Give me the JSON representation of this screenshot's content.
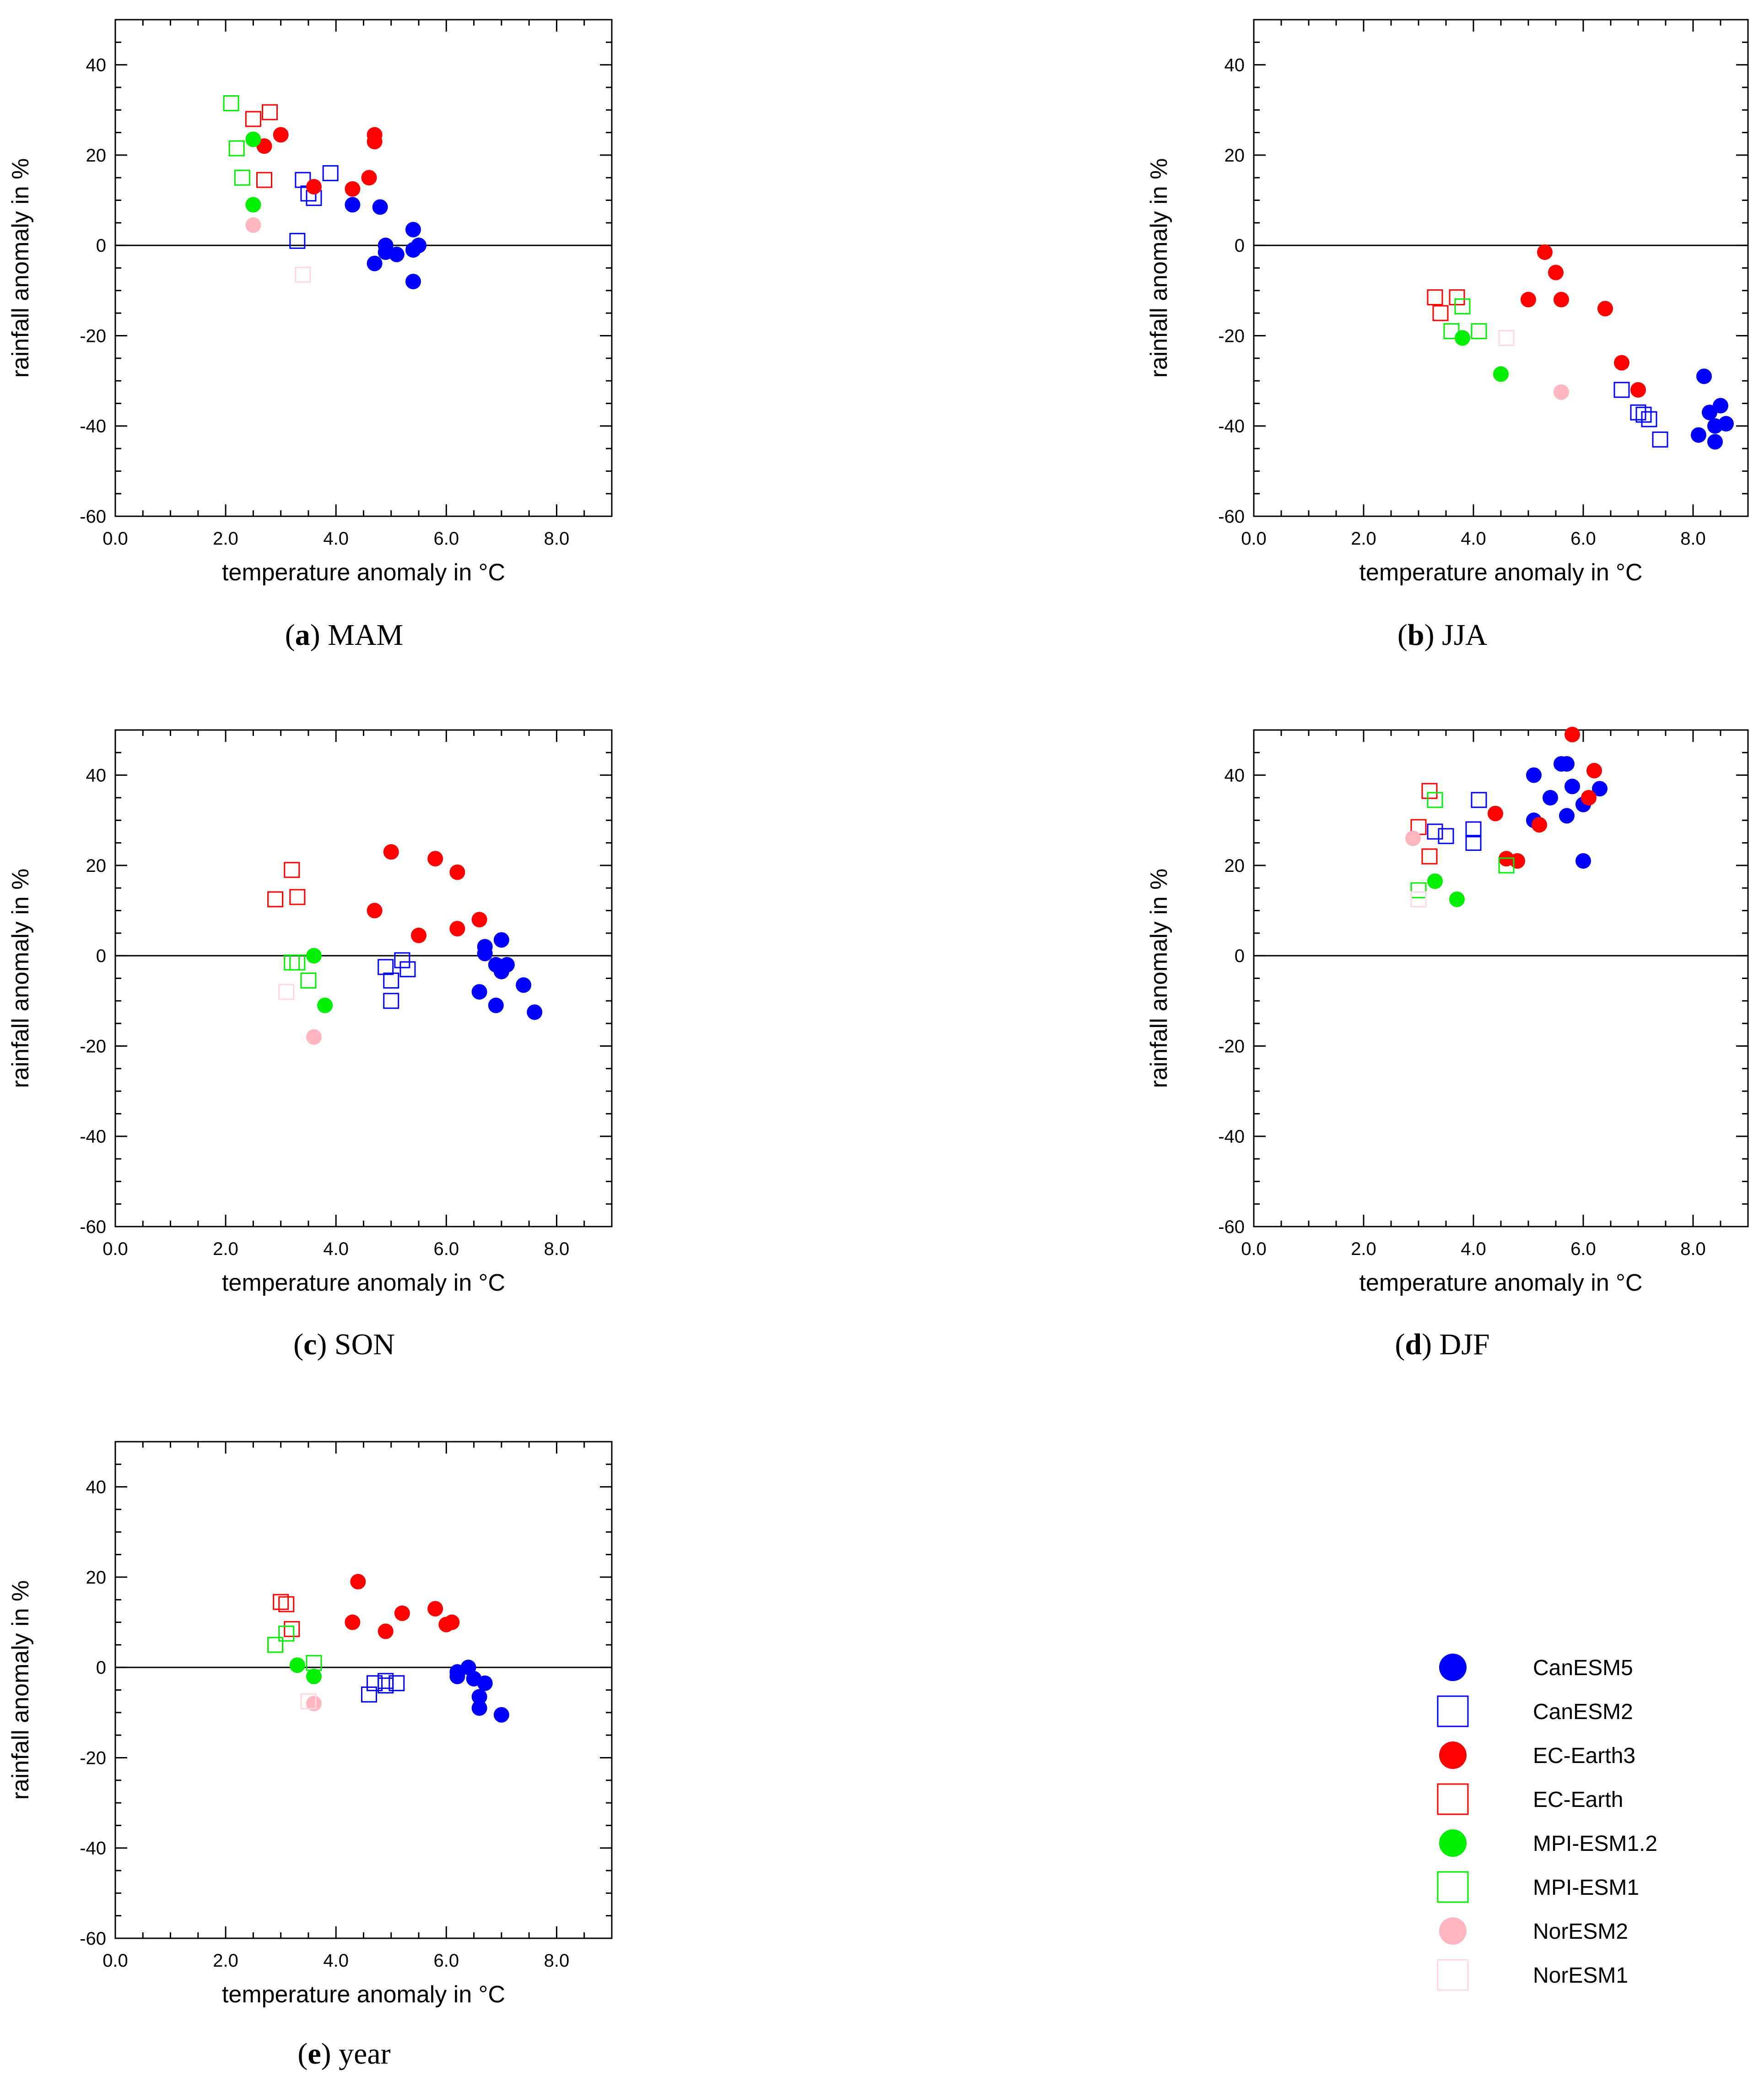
{
  "legend": [
    {
      "name": "CanESM5",
      "color": "#0000ff",
      "marker": "circle"
    },
    {
      "name": "CanESM2",
      "color": "#0000ff",
      "marker": "square"
    },
    {
      "name": "EC-Earth3",
      "color": "#ff0000",
      "marker": "circle"
    },
    {
      "name": "EC-Earth",
      "color": "#ff0000",
      "marker": "square"
    },
    {
      "name": "MPI-ESM1.2",
      "color": "#00ee00",
      "marker": "circle"
    },
    {
      "name": "MPI-ESM1",
      "color": "#00ee00",
      "marker": "square"
    },
    {
      "name": "NorESM2",
      "color": "#ffb6c1",
      "marker": "circle"
    },
    {
      "name": "NorESM1",
      "color": "#ffd8e0",
      "marker": "square"
    }
  ],
  "chart_data": [
    {
      "type": "scatter",
      "caption_letter": "a",
      "caption_text": "MAM",
      "xlabel": "temperature anomaly in",
      "xlabel_unit": "°C",
      "ylabel": "rainfall anomaly in %",
      "xlim": [
        0,
        9
      ],
      "ylim": [
        -60,
        50
      ],
      "xticks": [
        0,
        2,
        4,
        6,
        8
      ],
      "xtick_labels": [
        "0.0",
        "2.0",
        "4.0",
        "6.0",
        "8.0"
      ],
      "yticks": [
        -60,
        -40,
        -20,
        0,
        20,
        40
      ],
      "ytick_labels": [
        "-60",
        "-40",
        "-20",
        "0",
        "20",
        "40"
      ],
      "series": [
        {
          "name": "CanESM5",
          "x": [
            4.3,
            4.8,
            4.9,
            4.9,
            5.1,
            4.7,
            5.4,
            5.4,
            5.5,
            5.4
          ],
          "y": [
            9,
            8.5,
            0,
            -1.5,
            -2,
            -4,
            3.5,
            -1,
            0,
            -8
          ]
        },
        {
          "name": "CanESM2",
          "x": [
            3.4,
            3.5,
            3.6,
            3.9,
            3.3
          ],
          "y": [
            14.5,
            11.5,
            10.5,
            16,
            1
          ]
        },
        {
          "name": "EC-Earth3",
          "x": [
            3.0,
            2.7,
            3.6,
            4.3,
            4.6,
            4.7,
            4.7
          ],
          "y": [
            24.5,
            22,
            13,
            12.5,
            15,
            24.5,
            23
          ]
        },
        {
          "name": "EC-Earth",
          "x": [
            2.5,
            2.8,
            2.7
          ],
          "y": [
            28,
            29.5,
            14.5
          ]
        },
        {
          "name": "MPI-ESM1.2",
          "x": [
            2.5,
            2.5
          ],
          "y": [
            23.5,
            9
          ]
        },
        {
          "name": "MPI-ESM1",
          "x": [
            2.1,
            2.2,
            2.3
          ],
          "y": [
            31.5,
            21.5,
            15
          ]
        },
        {
          "name": "NorESM2",
          "x": [
            2.5
          ],
          "y": [
            4.5
          ]
        },
        {
          "name": "NorESM1",
          "x": [
            3.4
          ],
          "y": [
            -6.5
          ]
        }
      ]
    },
    {
      "type": "scatter",
      "caption_letter": "b",
      "caption_text": "JJA",
      "xlabel": "temperature anomaly in",
      "xlabel_unit": "°C",
      "ylabel": "rainfall anomaly in %",
      "xlim": [
        0,
        9
      ],
      "ylim": [
        -60,
        50
      ],
      "xticks": [
        0,
        2,
        4,
        6,
        8
      ],
      "xtick_labels": [
        "0.0",
        "2.0",
        "4.0",
        "6.0",
        "8.0"
      ],
      "yticks": [
        -60,
        -40,
        -20,
        0,
        20,
        40
      ],
      "ytick_labels": [
        "-60",
        "-40",
        "-20",
        "0",
        "20",
        "40"
      ],
      "series": [
        {
          "name": "CanESM5",
          "x": [
            8.2,
            8.1,
            8.3,
            8.4,
            8.4,
            8.5,
            8.6
          ],
          "y": [
            -29,
            -42,
            -37,
            -40,
            -43.5,
            -35.5,
            -39.5
          ]
        },
        {
          "name": "CanESM2",
          "x": [
            6.7,
            7.0,
            7.1,
            7.2,
            7.4
          ],
          "y": [
            -32,
            -37,
            -37.5,
            -38.5,
            -43
          ]
        },
        {
          "name": "EC-Earth3",
          "x": [
            5.3,
            5.5,
            5.0,
            5.6,
            6.4,
            6.7,
            7.0
          ],
          "y": [
            -1.5,
            -6,
            -12,
            -12,
            -14,
            -26,
            -32
          ]
        },
        {
          "name": "EC-Earth",
          "x": [
            3.3,
            3.4,
            3.7
          ],
          "y": [
            -11.5,
            -15,
            -11.5
          ]
        },
        {
          "name": "MPI-ESM1.2",
          "x": [
            3.8,
            4.5
          ],
          "y": [
            -20.5,
            -28.5
          ]
        },
        {
          "name": "MPI-ESM1",
          "x": [
            3.8,
            3.6,
            4.1
          ],
          "y": [
            -13.5,
            -19,
            -19
          ]
        },
        {
          "name": "NorESM2",
          "x": [
            5.6
          ],
          "y": [
            -32.5
          ]
        },
        {
          "name": "NorESM1",
          "x": [
            4.6
          ],
          "y": [
            -20.5
          ]
        }
      ]
    },
    {
      "type": "scatter",
      "caption_letter": "c",
      "caption_text": "SON",
      "xlabel": "temperature anomaly in",
      "xlabel_unit": "°C",
      "ylabel": "rainfall anomaly in %",
      "xlim": [
        0,
        9
      ],
      "ylim": [
        -60,
        50
      ],
      "xticks": [
        0,
        2,
        4,
        6,
        8
      ],
      "xtick_labels": [
        "0.0",
        "2.0",
        "4.0",
        "6.0",
        "8.0"
      ],
      "yticks": [
        -60,
        -40,
        -20,
        0,
        20,
        40
      ],
      "ytick_labels": [
        "-60",
        "-40",
        "-20",
        "0",
        "20",
        "40"
      ],
      "series": [
        {
          "name": "CanESM5",
          "x": [
            6.7,
            6.7,
            7.0,
            6.9,
            7.0,
            7.1,
            6.6,
            6.9,
            7.4,
            7.6
          ],
          "y": [
            2,
            0.5,
            3.5,
            -2,
            -3.5,
            -2,
            -8,
            -11,
            -6.5,
            -12.5
          ]
        },
        {
          "name": "CanESM2",
          "x": [
            4.9,
            5.2,
            5.3,
            5.0,
            5.0
          ],
          "y": [
            -2.5,
            -1,
            -3,
            -5.5,
            -10
          ]
        },
        {
          "name": "EC-Earth3",
          "x": [
            5.0,
            5.8,
            6.2,
            4.7,
            5.5,
            6.2,
            6.6
          ],
          "y": [
            23,
            21.5,
            18.5,
            10,
            4.5,
            6,
            8
          ]
        },
        {
          "name": "EC-Earth",
          "x": [
            2.9,
            3.2,
            3.3
          ],
          "y": [
            12.5,
            19,
            13
          ]
        },
        {
          "name": "MPI-ESM1.2",
          "x": [
            3.6,
            3.8
          ],
          "y": [
            0,
            -11
          ]
        },
        {
          "name": "MPI-ESM1",
          "x": [
            3.2,
            3.3,
            3.5
          ],
          "y": [
            -1.5,
            -1.5,
            -5.5
          ]
        },
        {
          "name": "NorESM2",
          "x": [
            3.6
          ],
          "y": [
            -18
          ]
        },
        {
          "name": "NorESM1",
          "x": [
            3.1
          ],
          "y": [
            -8
          ]
        }
      ]
    },
    {
      "type": "scatter",
      "caption_letter": "d",
      "caption_text": "DJF",
      "xlabel": "temperature anomaly in",
      "xlabel_unit": "°C",
      "ylabel": "rainfall anomaly in %",
      "xlim": [
        0,
        9
      ],
      "ylim": [
        -60,
        50
      ],
      "xticks": [
        0,
        2,
        4,
        6,
        8
      ],
      "xtick_labels": [
        "0.0",
        "2.0",
        "4.0",
        "6.0",
        "8.0"
      ],
      "yticks": [
        -60,
        -40,
        -20,
        0,
        20,
        40
      ],
      "ytick_labels": [
        "-60",
        "-40",
        "-20",
        "0",
        "20",
        "40"
      ],
      "series": [
        {
          "name": "CanESM5",
          "x": [
            5.6,
            5.7,
            5.1,
            5.8,
            5.4,
            6.3,
            6.0,
            5.1,
            5.7,
            6.0
          ],
          "y": [
            42.5,
            42.5,
            40,
            37.5,
            35,
            37,
            33.5,
            30,
            31,
            21
          ]
        },
        {
          "name": "CanESM2",
          "x": [
            4.1,
            4.0,
            4.0,
            3.3,
            3.5
          ],
          "y": [
            34.5,
            28,
            25,
            27.5,
            26.5
          ]
        },
        {
          "name": "EC-Earth3",
          "x": [
            5.8,
            6.2,
            6.1,
            4.4,
            5.2,
            4.6,
            4.8
          ],
          "y": [
            49,
            41,
            35,
            31.5,
            29,
            21.5,
            21
          ]
        },
        {
          "name": "EC-Earth",
          "x": [
            3.2,
            3.0,
            3.2
          ],
          "y": [
            36.5,
            28.5,
            22
          ]
        },
        {
          "name": "MPI-ESM1.2",
          "x": [
            3.3,
            3.7
          ],
          "y": [
            16.5,
            12.5
          ]
        },
        {
          "name": "MPI-ESM1",
          "x": [
            3.3,
            3.0,
            4.6
          ],
          "y": [
            34.5,
            14.5,
            20
          ]
        },
        {
          "name": "NorESM2",
          "x": [
            2.9
          ],
          "y": [
            26
          ]
        },
        {
          "name": "NorESM1",
          "x": [
            3.0
          ],
          "y": [
            12.5
          ]
        }
      ]
    },
    {
      "type": "scatter",
      "caption_letter": "e",
      "caption_text": "year",
      "xlabel": "temperature anomaly in",
      "xlabel_unit": "°C",
      "ylabel": "rainfall anomaly in %",
      "xlim": [
        0,
        9
      ],
      "ylim": [
        -60,
        50
      ],
      "xticks": [
        0,
        2,
        4,
        6,
        8
      ],
      "xtick_labels": [
        "0.0",
        "2.0",
        "4.0",
        "6.0",
        "8.0"
      ],
      "yticks": [
        -60,
        -40,
        -20,
        0,
        20,
        40
      ],
      "ytick_labels": [
        "-60",
        "-40",
        "-20",
        "0",
        "20",
        "40"
      ],
      "series": [
        {
          "name": "CanESM5",
          "x": [
            6.2,
            6.4,
            6.2,
            6.5,
            6.7,
            6.6,
            6.6,
            7.0
          ],
          "y": [
            -1,
            0,
            -2,
            -2.5,
            -3.5,
            -6.5,
            -9,
            -10.5
          ]
        },
        {
          "name": "CanESM2",
          "x": [
            4.7,
            4.9,
            4.9,
            5.1,
            4.6
          ],
          "y": [
            -3.5,
            -3,
            -4,
            -3.5,
            -6
          ]
        },
        {
          "name": "EC-Earth3",
          "x": [
            4.4,
            4.3,
            4.9,
            5.2,
            5.8,
            6.0,
            6.1
          ],
          "y": [
            19,
            10,
            8,
            12,
            13,
            9.5,
            10
          ]
        },
        {
          "name": "EC-Earth",
          "x": [
            3.0,
            3.1,
            3.2
          ],
          "y": [
            14.5,
            14,
            8.5
          ]
        },
        {
          "name": "MPI-ESM1.2",
          "x": [
            3.3,
            3.6
          ],
          "y": [
            0.5,
            -2
          ]
        },
        {
          "name": "MPI-ESM1",
          "x": [
            2.9,
            3.1,
            3.6
          ],
          "y": [
            5,
            7.5,
            1
          ]
        },
        {
          "name": "NorESM2",
          "x": [
            3.6
          ],
          "y": [
            -8
          ]
        },
        {
          "name": "NorESM1",
          "x": [
            3.5
          ],
          "y": [
            -7.5
          ]
        }
      ]
    }
  ]
}
